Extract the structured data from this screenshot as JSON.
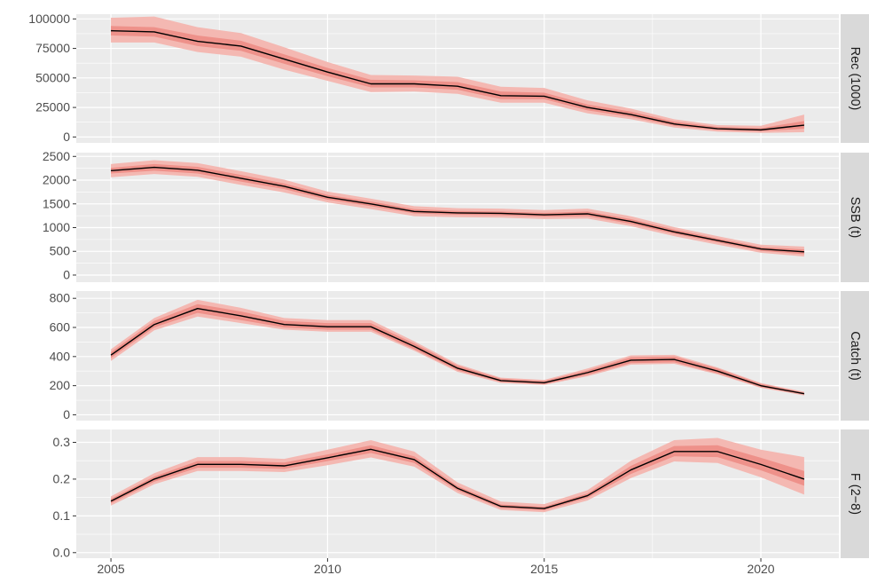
{
  "chart_data": {
    "type": "line",
    "x_ticks": [
      2005,
      2010,
      2015,
      2020
    ],
    "xlim": [
      2004.2,
      2021.8
    ],
    "colors": {
      "panel_bg": "#ebebeb",
      "grid": "#ffffff",
      "strip_bg": "#d9d9d9",
      "outer_band": "#f4b8b2",
      "inner_band": "#ee918a",
      "line": "#000000",
      "tick_text": "#4d4d4d",
      "strip_text": "#1a1a1a"
    },
    "panels": [
      {
        "label": "Rec (1000)",
        "ylim": [
          -5000,
          104000
        ],
        "y_ticks": [
          0,
          25000,
          50000,
          75000,
          100000
        ],
        "y_tick_labels": [
          "0",
          "25000",
          "50000",
          "75000",
          "100000"
        ],
        "x": [
          2005,
          2006,
          2007,
          2008,
          2009,
          2010,
          2011,
          2012,
          2013,
          2014,
          2015,
          2016,
          2017,
          2018,
          2019,
          2020,
          2021
        ],
        "median": [
          90000,
          89000,
          81000,
          77000,
          66000,
          55000,
          45000,
          45000,
          43000,
          35000,
          34500,
          25000,
          19000,
          11000,
          7000,
          6000,
          10000
        ],
        "inner_low": [
          86000,
          85000,
          77000,
          73000,
          62000,
          51500,
          42000,
          42000,
          40000,
          32000,
          32000,
          22500,
          17000,
          9500,
          5800,
          4800,
          7000
        ],
        "inner_high": [
          94000,
          93000,
          86000,
          81500,
          70000,
          58500,
          48500,
          48000,
          46500,
          38500,
          37500,
          27500,
          21500,
          13000,
          8500,
          7500,
          13500
        ],
        "outer_low": [
          80000,
          80000,
          72000,
          68000,
          57000,
          47500,
          38000,
          38500,
          36500,
          29000,
          29000,
          20000,
          15000,
          8000,
          4500,
          3500,
          4000
        ],
        "outer_high": [
          101000,
          102000,
          93000,
          88000,
          76000,
          63500,
          52500,
          52000,
          51000,
          42500,
          41500,
          31000,
          24000,
          15000,
          10000,
          9500,
          19000
        ]
      },
      {
        "label": "SSB (t)",
        "ylim": [
          -150,
          2580
        ],
        "y_ticks": [
          0,
          500,
          1000,
          1500,
          2000,
          2500
        ],
        "y_tick_labels": [
          "0",
          "500",
          "1000",
          "1500",
          "2000",
          "2500"
        ],
        "x": [
          2005,
          2006,
          2007,
          2008,
          2009,
          2010,
          2011,
          2012,
          2013,
          2014,
          2015,
          2016,
          2017,
          2018,
          2019,
          2020,
          2021
        ],
        "median": [
          2200,
          2270,
          2210,
          2040,
          1870,
          1640,
          1500,
          1340,
          1310,
          1300,
          1270,
          1290,
          1130,
          910,
          730,
          550,
          490
        ],
        "inner_low": [
          2140,
          2200,
          2140,
          1970,
          1810,
          1590,
          1450,
          1300,
          1270,
          1260,
          1230,
          1240,
          1080,
          870,
          690,
          510,
          440
        ],
        "inner_high": [
          2260,
          2340,
          2280,
          2110,
          1930,
          1690,
          1550,
          1390,
          1350,
          1340,
          1310,
          1340,
          1180,
          960,
          770,
          590,
          540
        ],
        "outer_low": [
          2060,
          2130,
          2070,
          1900,
          1740,
          1530,
          1390,
          1240,
          1220,
          1210,
          1180,
          1190,
          1030,
          820,
          640,
          470,
          390
        ],
        "outer_high": [
          2340,
          2420,
          2360,
          2190,
          2010,
          1760,
          1610,
          1450,
          1410,
          1400,
          1370,
          1400,
          1240,
          1010,
          820,
          640,
          600
        ]
      },
      {
        "label": "Catch (t)",
        "ylim": [
          -40,
          850
        ],
        "y_ticks": [
          0,
          200,
          400,
          600,
          800
        ],
        "y_tick_labels": [
          "0",
          "200",
          "400",
          "600",
          "800"
        ],
        "x": [
          2005,
          2006,
          2007,
          2008,
          2009,
          2010,
          2011,
          2012,
          2013,
          2014,
          2015,
          2016,
          2017,
          2018,
          2019,
          2020,
          2021
        ],
        "median": [
          410,
          620,
          730,
          680,
          620,
          605,
          605,
          470,
          320,
          235,
          220,
          290,
          375,
          380,
          300,
          200,
          145
        ],
        "inner_low": [
          390,
          600,
          700,
          650,
          600,
          585,
          585,
          450,
          305,
          225,
          210,
          275,
          355,
          360,
          285,
          190,
          138
        ],
        "inner_high": [
          430,
          645,
          760,
          710,
          645,
          630,
          630,
          490,
          338,
          248,
          232,
          305,
          395,
          400,
          318,
          212,
          152
        ],
        "outer_low": [
          370,
          580,
          675,
          630,
          585,
          570,
          570,
          440,
          295,
          218,
          205,
          265,
          345,
          350,
          278,
          185,
          133
        ],
        "outer_high": [
          450,
          665,
          790,
          735,
          665,
          650,
          650,
          505,
          348,
          255,
          240,
          318,
          408,
          412,
          325,
          218,
          158
        ]
      },
      {
        "label": "F (2−8)",
        "ylim": [
          -0.015,
          0.335
        ],
        "y_ticks": [
          0.0,
          0.1,
          0.2,
          0.3
        ],
        "y_tick_labels": [
          "0.0",
          "0.1",
          "0.2",
          "0.3"
        ],
        "x": [
          2005,
          2006,
          2007,
          2008,
          2009,
          2010,
          2011,
          2012,
          2013,
          2014,
          2015,
          2016,
          2017,
          2018,
          2019,
          2020,
          2021
        ],
        "median": [
          0.14,
          0.2,
          0.24,
          0.24,
          0.236,
          0.258,
          0.281,
          0.253,
          0.175,
          0.126,
          0.12,
          0.155,
          0.225,
          0.275,
          0.275,
          0.24,
          0.2
        ],
        "inner_low": [
          0.134,
          0.193,
          0.231,
          0.231,
          0.228,
          0.249,
          0.271,
          0.244,
          0.169,
          0.121,
          0.115,
          0.149,
          0.214,
          0.262,
          0.26,
          0.224,
          0.182
        ],
        "inner_high": [
          0.146,
          0.207,
          0.249,
          0.249,
          0.245,
          0.267,
          0.292,
          0.262,
          0.181,
          0.131,
          0.125,
          0.161,
          0.236,
          0.29,
          0.292,
          0.258,
          0.222
        ],
        "outer_low": [
          0.128,
          0.186,
          0.222,
          0.222,
          0.219,
          0.238,
          0.259,
          0.234,
          0.162,
          0.116,
          0.11,
          0.142,
          0.203,
          0.248,
          0.244,
          0.205,
          0.158
        ],
        "outer_high": [
          0.153,
          0.216,
          0.26,
          0.26,
          0.255,
          0.28,
          0.306,
          0.275,
          0.191,
          0.139,
          0.132,
          0.17,
          0.25,
          0.306,
          0.312,
          0.28,
          0.26
        ]
      }
    ]
  }
}
